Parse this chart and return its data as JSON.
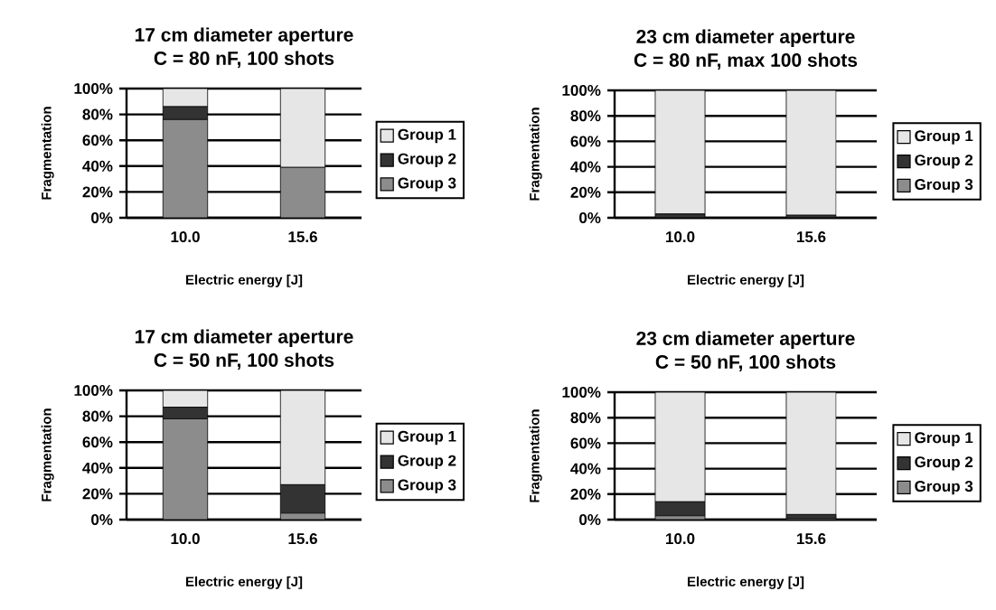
{
  "chart_data": [
    {
      "type": "bar",
      "stacked": true,
      "title": "17 cm diameter aperture",
      "subtitle": "C = 80 nF, 100 shots",
      "xlabel": "Electric energy [J]",
      "ylabel": "Fragmentation",
      "categories": [
        "10.0",
        "15.6"
      ],
      "series": [
        {
          "name": "Group 3",
          "color": "#8c8c8c",
          "values": [
            76,
            39
          ]
        },
        {
          "name": "Group 2",
          "color": "#333333",
          "values": [
            10,
            0
          ]
        },
        {
          "name": "Group 1",
          "color": "#e6e6e6",
          "values": [
            14,
            61
          ]
        }
      ],
      "ylim": [
        0,
        100
      ],
      "yticks": [
        {
          "value": 0,
          "label": "0%"
        },
        {
          "value": 20,
          "label": "20%"
        },
        {
          "value": 40,
          "label": "40%"
        },
        {
          "value": 60,
          "label": "60%"
        },
        {
          "value": 80,
          "label": "80%"
        },
        {
          "value": 100,
          "label": "100%"
        }
      ],
      "grid": "y",
      "legend": "right"
    },
    {
      "type": "bar",
      "stacked": true,
      "title": "23 cm diameter aperture",
      "subtitle": "C = 80 nF, max 100 shots",
      "xlabel": "Electric energy [J]",
      "ylabel": "Fragmentation",
      "categories": [
        "10.0",
        "15.6"
      ],
      "series": [
        {
          "name": "Group 3",
          "color": "#8c8c8c",
          "values": [
            0,
            0
          ]
        },
        {
          "name": "Group 2",
          "color": "#333333",
          "values": [
            3,
            2
          ]
        },
        {
          "name": "Group 1",
          "color": "#e6e6e6",
          "values": [
            97,
            98
          ]
        }
      ],
      "ylim": [
        0,
        100
      ],
      "yticks": [
        {
          "value": 0,
          "label": "0%"
        },
        {
          "value": 20,
          "label": "20%"
        },
        {
          "value": 40,
          "label": "40%"
        },
        {
          "value": 60,
          "label": "60%"
        },
        {
          "value": 80,
          "label": "80%"
        },
        {
          "value": 100,
          "label": "100%"
        }
      ],
      "grid": "y",
      "legend": "right"
    },
    {
      "type": "bar",
      "stacked": true,
      "title": "17 cm diameter aperture",
      "subtitle": "C = 50 nF, 100 shots",
      "xlabel": "Electric energy [J]",
      "ylabel": "Fragmentation",
      "categories": [
        "10.0",
        "15.6"
      ],
      "series": [
        {
          "name": "Group 3",
          "color": "#8c8c8c",
          "values": [
            78,
            5
          ]
        },
        {
          "name": "Group 2",
          "color": "#333333",
          "values": [
            9,
            22
          ]
        },
        {
          "name": "Group 1",
          "color": "#e6e6e6",
          "values": [
            13,
            73
          ]
        }
      ],
      "ylim": [
        0,
        100
      ],
      "yticks": [
        {
          "value": 0,
          "label": "0%"
        },
        {
          "value": 20,
          "label": "20%"
        },
        {
          "value": 40,
          "label": "40%"
        },
        {
          "value": 60,
          "label": "60%"
        },
        {
          "value": 80,
          "label": "80%"
        },
        {
          "value": 100,
          "label": "100%"
        }
      ],
      "grid": "y",
      "legend": "right"
    },
    {
      "type": "bar",
      "stacked": true,
      "title": "23 cm diameter aperture",
      "subtitle": "C = 50 nF, 100 shots",
      "xlabel": "Electric energy [J]",
      "ylabel": "Fragmentation",
      "categories": [
        "10.0",
        "15.6"
      ],
      "series": [
        {
          "name": "Group 3",
          "color": "#8c8c8c",
          "values": [
            3,
            1
          ]
        },
        {
          "name": "Group 2",
          "color": "#333333",
          "values": [
            11,
            3
          ]
        },
        {
          "name": "Group 1",
          "color": "#e6e6e6",
          "values": [
            86,
            96
          ]
        }
      ],
      "ylim": [
        0,
        100
      ],
      "yticks": [
        {
          "value": 0,
          "label": "0%"
        },
        {
          "value": 20,
          "label": "20%"
        },
        {
          "value": 40,
          "label": "40%"
        },
        {
          "value": 60,
          "label": "60%"
        },
        {
          "value": 80,
          "label": "80%"
        },
        {
          "value": 100,
          "label": "100%"
        }
      ],
      "grid": "y",
      "legend": "right"
    }
  ]
}
